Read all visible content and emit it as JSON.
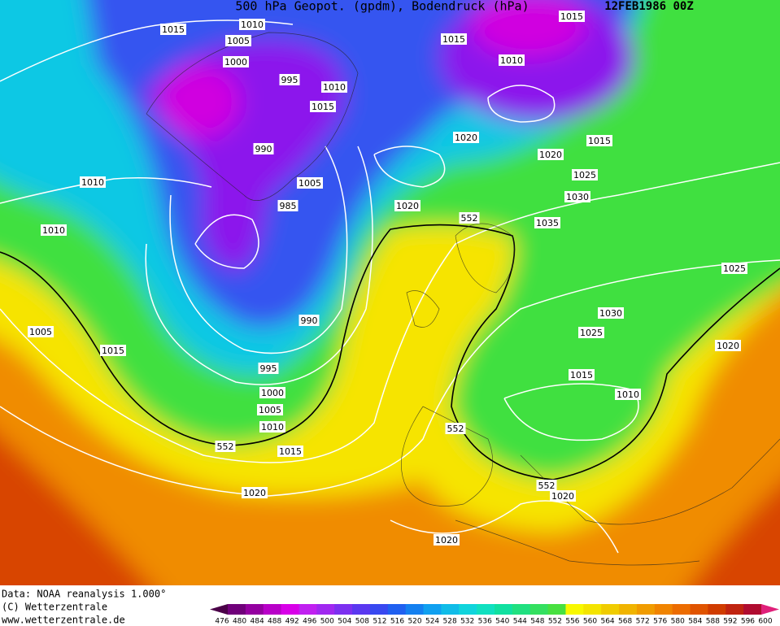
{
  "header": {
    "title": "500 hPa Geopot. (gpdm), Bodendruck (hPa)",
    "date": "12FEB1986 00Z"
  },
  "footer": {
    "source": "Data: NOAA reanalysis 1.000°",
    "copyright": "(C) Wetterzentrale",
    "url": "www.wetterzentrale.de"
  },
  "legend": {
    "levels": [
      476,
      480,
      484,
      488,
      492,
      496,
      500,
      504,
      508,
      512,
      516,
      520,
      524,
      528,
      532,
      536,
      540,
      544,
      548,
      552,
      556,
      560,
      564,
      568,
      572,
      576,
      580,
      584,
      588,
      592,
      596,
      600
    ],
    "colors": [
      "#4a0048",
      "#70007a",
      "#9400a0",
      "#b800c8",
      "#d800e8",
      "#c020f0",
      "#a028f0",
      "#7c30f0",
      "#5a38f0",
      "#3848f0",
      "#2060f0",
      "#1480f0",
      "#10a0f0",
      "#10bce8",
      "#10d4dc",
      "#10e0c0",
      "#10e0a0",
      "#20e080",
      "#34e060",
      "#48e040",
      "#f8f800",
      "#f4e400",
      "#f0cc00",
      "#f0b400",
      "#f09c00",
      "#f08400",
      "#ec6c00",
      "#e05400",
      "#d03c00",
      "#c02410",
      "#b00c30",
      "#e0207a"
    ]
  },
  "isobar_labels": [
    "1015",
    "1010",
    "1005",
    "1000",
    "995",
    "1010",
    "1015",
    "990",
    "1005",
    "985",
    "1010",
    "1010",
    "1015",
    "1010",
    "1015",
    "1020",
    "1020",
    "1015",
    "1025",
    "1030",
    "1020",
    "1035",
    "552",
    "1025",
    "1030",
    "1025",
    "990",
    "995",
    "1000",
    "1005",
    "1010",
    "552",
    "1015",
    "1005",
    "1015",
    "1020",
    "1015",
    "1010",
    "552",
    "552",
    "1020",
    "1020",
    "1020"
  ]
}
